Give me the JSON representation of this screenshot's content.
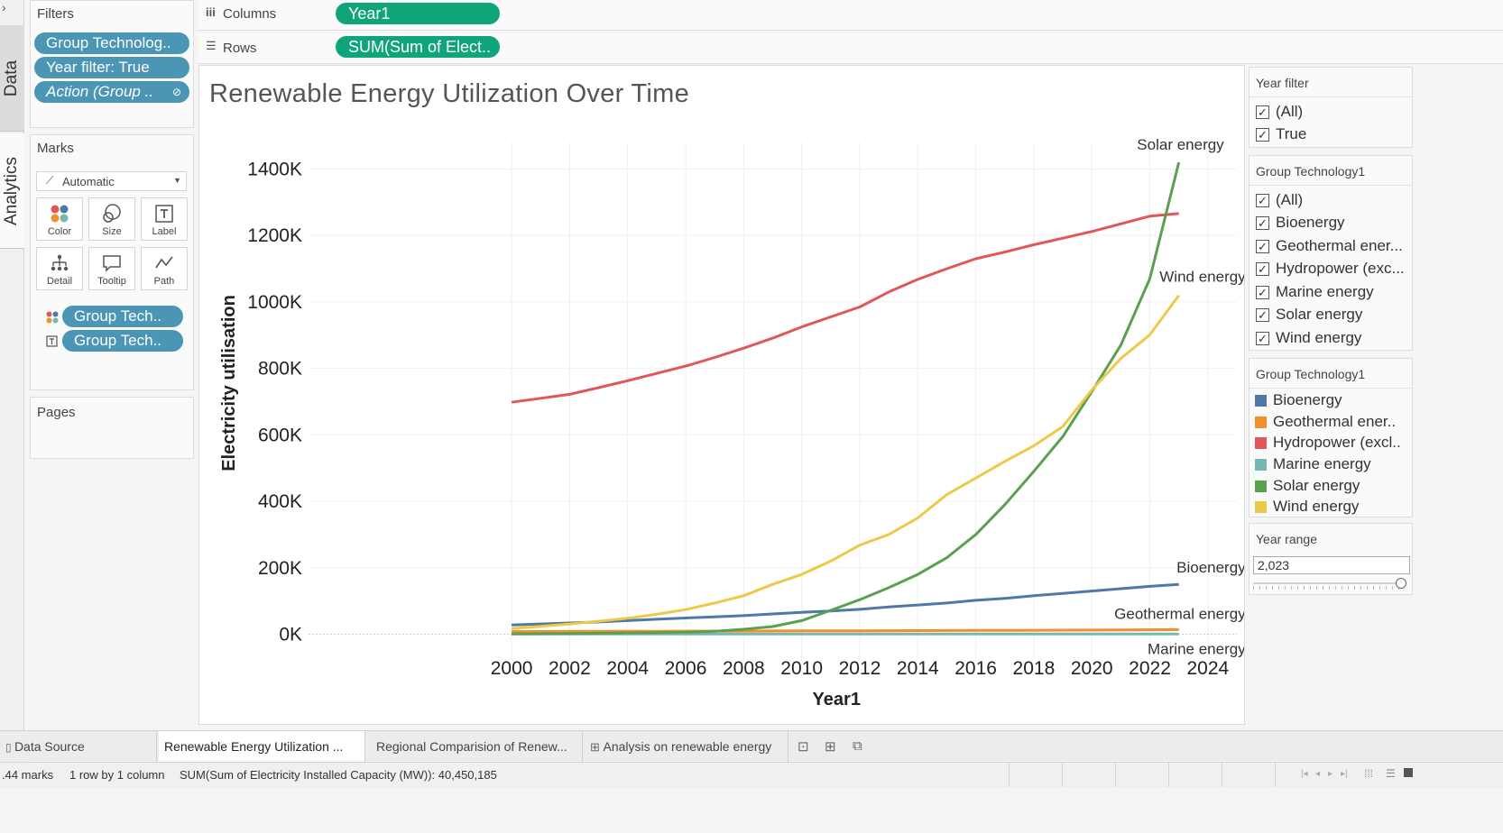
{
  "sidebar_tabs": {
    "data": "Data",
    "analytics": "Analytics"
  },
  "filters": {
    "title": "Filters",
    "pills": [
      "Group Technolog..",
      "Year filter: True",
      "Action (Group .."
    ]
  },
  "marks": {
    "title": "Marks",
    "type": "Automatic",
    "buttons": [
      "Color",
      "Size",
      "Label",
      "Detail",
      "Tooltip",
      "Path"
    ],
    "fields": [
      "Group Tech..",
      "Group Tech.."
    ]
  },
  "pages": {
    "title": "Pages"
  },
  "shelves": {
    "columns_label": "Columns",
    "columns_pill": "Year1",
    "rows_label": "Rows",
    "rows_pill": "SUM(Sum of Elect.."
  },
  "chart_title": "Renewable Energy Utilization Over Time",
  "chart_data": {
    "type": "line",
    "title": "Renewable Energy Utilization Over Time",
    "xlabel": "Year1",
    "ylabel": "Electricity utilisation",
    "xlim": [
      1993,
      2025
    ],
    "ylim": [
      -80000,
      1480000
    ],
    "x_ticks": [
      2000,
      2002,
      2004,
      2006,
      2008,
      2010,
      2012,
      2014,
      2016,
      2018,
      2020,
      2022,
      2024
    ],
    "y_ticks": [
      0,
      200000,
      400000,
      600000,
      800000,
      1000000,
      1200000,
      1400000
    ],
    "y_tick_labels": [
      "0K",
      "200K",
      "400K",
      "600K",
      "800K",
      "1000K",
      "1200K",
      "1400K"
    ],
    "x": [
      2000,
      2001,
      2002,
      2003,
      2004,
      2005,
      2006,
      2007,
      2008,
      2009,
      2010,
      2011,
      2012,
      2013,
      2014,
      2015,
      2016,
      2017,
      2018,
      2019,
      2020,
      2021,
      2022,
      2023
    ],
    "series": [
      {
        "name": "Bioenergy",
        "color": "#4e79a7",
        "label": "Bioenergy",
        "values": [
          28000,
          31000,
          34000,
          37000,
          41000,
          45000,
          49000,
          52000,
          56000,
          61000,
          66000,
          70000,
          75000,
          82000,
          88000,
          94000,
          102000,
          108000,
          116000,
          123000,
          130000,
          137000,
          144000,
          150000
        ]
      },
      {
        "name": "Geothermal energy",
        "color": "#f28e2b",
        "label": "Geothermal energy",
        "values": [
          8000,
          8200,
          8400,
          8600,
          8800,
          9000,
          9200,
          9400,
          9600,
          9800,
          10000,
          10200,
          10400,
          10600,
          10800,
          11100,
          11400,
          11700,
          12000,
          12300,
          12600,
          13000,
          13400,
          13800
        ]
      },
      {
        "name": "Hydropower (excl..",
        "color": "#e15759",
        "label": "",
        "values": [
          698000,
          710000,
          722000,
          742000,
          763000,
          785000,
          807000,
          833000,
          861000,
          891000,
          925000,
          955000,
          985000,
          1030000,
          1068000,
          1100000,
          1130000,
          1150000,
          1172000,
          1192000,
          1212000,
          1235000,
          1258000,
          1266000
        ]
      },
      {
        "name": "Marine energy",
        "color": "#76b7b2",
        "label": "Marine energy",
        "values": [
          500,
          500,
          500,
          500,
          500,
          500,
          500,
          500,
          500,
          500,
          500,
          500,
          500,
          500,
          500,
          500,
          500,
          500,
          500,
          500,
          500,
          500,
          500,
          500
        ]
      },
      {
        "name": "Solar energy",
        "color": "#59a14f",
        "label": "Solar energy",
        "values": [
          1000,
          1500,
          2000,
          3000,
          4000,
          5000,
          6000,
          9000,
          15000,
          23000,
          41000,
          72000,
          104000,
          140000,
          180000,
          230000,
          300000,
          390000,
          490000,
          595000,
          730000,
          870000,
          1070000,
          1420000
        ]
      },
      {
        "name": "Wind energy",
        "color": "#edc948",
        "label": "Wind energy",
        "values": [
          17000,
          24000,
          31000,
          39000,
          48000,
          60000,
          74000,
          94000,
          116000,
          150000,
          180000,
          220000,
          268000,
          300000,
          350000,
          420000,
          470000,
          520000,
          567000,
          625000,
          735000,
          830000,
          901000,
          1020000
        ]
      }
    ]
  },
  "year_filter": {
    "title": "Year filter",
    "options": [
      "(All)",
      "True"
    ]
  },
  "group_tech_filter": {
    "title": "Group Technology1",
    "options": [
      "(All)",
      "Bioenergy",
      "Geothermal ener...",
      "Hydropower (exc...",
      "Marine energy",
      "Solar energy",
      "Wind energy"
    ]
  },
  "legend": {
    "title": "Group Technology1",
    "items": [
      {
        "label": "Bioenergy",
        "color": "#4e79a7"
      },
      {
        "label": "Geothermal ener..",
        "color": "#f28e2b"
      },
      {
        "label": "Hydropower (excl..",
        "color": "#e15759"
      },
      {
        "label": "Marine energy",
        "color": "#76b7b2"
      },
      {
        "label": "Solar energy",
        "color": "#59a14f"
      },
      {
        "label": "Wind energy",
        "color": "#edc948"
      }
    ]
  },
  "year_range": {
    "title": "Year range",
    "value": "2,023"
  },
  "bottom_tabs": [
    "Data Source",
    "Renewable Energy Utilization ...",
    "Regional Comparision of Renew...",
    "Analysis on renewable energy"
  ],
  "status": {
    "marks": ".44 marks",
    "grid": "1 row by 1 column",
    "sum": "SUM(Sum of Electricity Installed Capacity (MW)): 40,450,185"
  }
}
